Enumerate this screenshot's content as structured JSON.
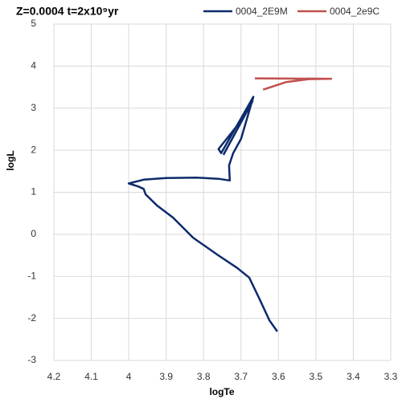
{
  "chart_data": {
    "type": "line",
    "title": "Z=0.0004 t=2x10⁹yr",
    "x_label": "logTe",
    "y_label": "logL",
    "xlim": [
      4.2,
      3.3
    ],
    "xticks": [
      4.2,
      4.1,
      4,
      3.9,
      3.8,
      3.7,
      3.6,
      3.5,
      3.4,
      3.3
    ],
    "ylim": [
      -3,
      5
    ],
    "yticks": [
      -3,
      -2,
      -1,
      0,
      1,
      2,
      3,
      4,
      5
    ],
    "grid": true,
    "series": [
      {
        "name": "0004_2E9M",
        "color": "#0d2a6b",
        "x": [
          3.603,
          3.624,
          3.652,
          3.678,
          3.71,
          3.764,
          3.828,
          3.882,
          3.925,
          3.955,
          3.96,
          3.975,
          4.0,
          3.96,
          3.9,
          3.82,
          3.76,
          3.73,
          3.732,
          3.721,
          3.7,
          3.667,
          3.753,
          3.76,
          3.7,
          3.669,
          3.747
        ],
        "values": [
          -2.31,
          -2.05,
          -1.51,
          -1.03,
          -0.8,
          -0.48,
          -0.08,
          0.4,
          0.69,
          0.95,
          1.08,
          1.14,
          1.21,
          1.3,
          1.34,
          1.35,
          1.32,
          1.28,
          1.64,
          1.93,
          2.27,
          3.27,
          1.93,
          2.03,
          2.7,
          3.17,
          1.89
        ]
      },
      {
        "name": "0004_2e9C",
        "color": "#c0504d",
        "x": [
          3.663,
          3.459,
          3.52,
          3.58,
          3.641
        ],
        "values": [
          3.71,
          3.7,
          3.69,
          3.62,
          3.44
        ]
      }
    ]
  }
}
